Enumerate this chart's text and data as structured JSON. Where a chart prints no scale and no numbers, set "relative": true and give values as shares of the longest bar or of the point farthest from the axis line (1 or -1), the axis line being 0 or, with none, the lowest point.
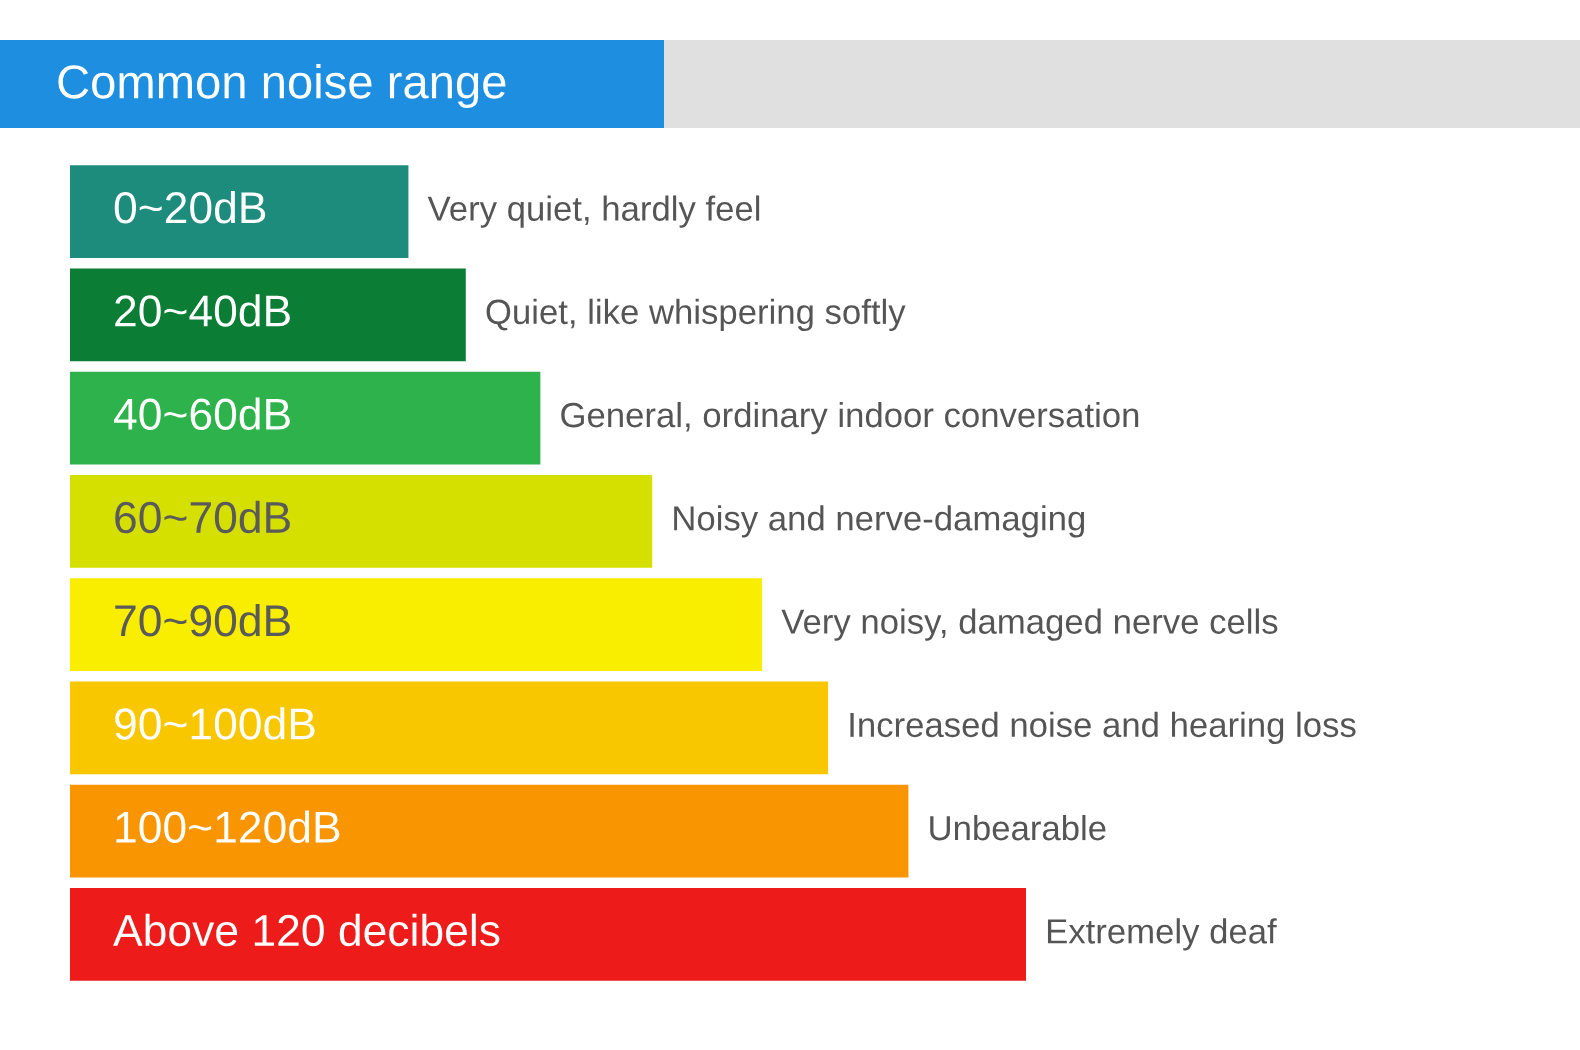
{
  "chart_data": {
    "type": "bar",
    "orientation": "horizontal",
    "relative": true,
    "title": "Common noise range",
    "categories": [
      "0~20dB",
      "20~40dB",
      "40~60dB",
      "60~70dB",
      "70~90dB",
      "90~100dB",
      "100~120dB",
      "Above 120 decibels"
    ],
    "values": [
      0.354,
      0.414,
      0.492,
      0.609,
      0.724,
      0.793,
      0.877,
      1
    ],
    "colors": [
      "#1e8c7c",
      "#0b7d34",
      "#2eb24b",
      "#d6e000",
      "#f9ee00",
      "#f8c700",
      "#f89500",
      "#ee1b1b"
    ],
    "annotations": [
      {
        "text": "Very quiet, hardly feel",
        "x": 0.354,
        "y": "0~20dB"
      },
      {
        "text": "Quiet, like whispering softly",
        "x": 0.414,
        "y": "20~40dB"
      },
      {
        "text": "General, ordinary indoor conversation",
        "x": 0.492,
        "y": "40~60dB"
      },
      {
        "text": "Noisy and nerve-damaging",
        "x": 0.609,
        "y": "60~70dB"
      },
      {
        "text": "Very noisy, damaged nerve cells",
        "x": 0.724,
        "y": "70~90dB"
      },
      {
        "text": "Increased noise and hearing loss",
        "x": 0.793,
        "y": "90~100dB"
      },
      {
        "text": "Unbearable",
        "x": 0.877,
        "y": "100~120dB"
      },
      {
        "text": "Extremely deaf",
        "x": 1,
        "y": "Above 120 decibels"
      }
    ],
    "legend": false
  }
}
